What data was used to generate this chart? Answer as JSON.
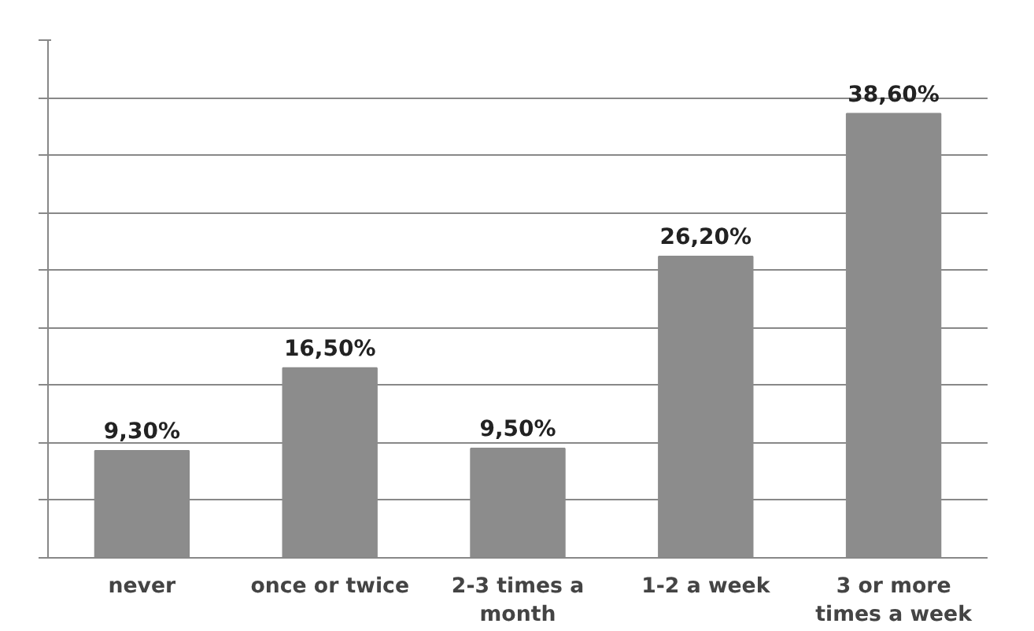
{
  "chart_data": {
    "type": "bar",
    "categories": [
      "never",
      "once or twice",
      "2-3 times a\nmonth",
      "1-2 a week",
      "3 or more\ntimes a week"
    ],
    "values": [
      9.3,
      16.5,
      9.5,
      26.2,
      38.6
    ],
    "value_labels": [
      "9,30%",
      "16,50%",
      "9,50%",
      "26,20%",
      "38,60%"
    ],
    "color": "#8c8c8c",
    "ylim": [
      0,
      45
    ],
    "yticks": [
      {
        "value": 0,
        "label": null
      },
      {
        "value": 5,
        "label": null
      },
      {
        "value": 10,
        "label": null
      },
      {
        "value": 15,
        "label": null
      },
      {
        "value": 20,
        "label": null
      },
      {
        "value": 25,
        "label": null
      },
      {
        "value": 30,
        "label": null
      },
      {
        "value": 35,
        "label": null
      },
      {
        "value": 40,
        "label": null
      },
      {
        "value": 45,
        "label": null
      }
    ],
    "tick_labels": "x",
    "grid": "y"
  }
}
